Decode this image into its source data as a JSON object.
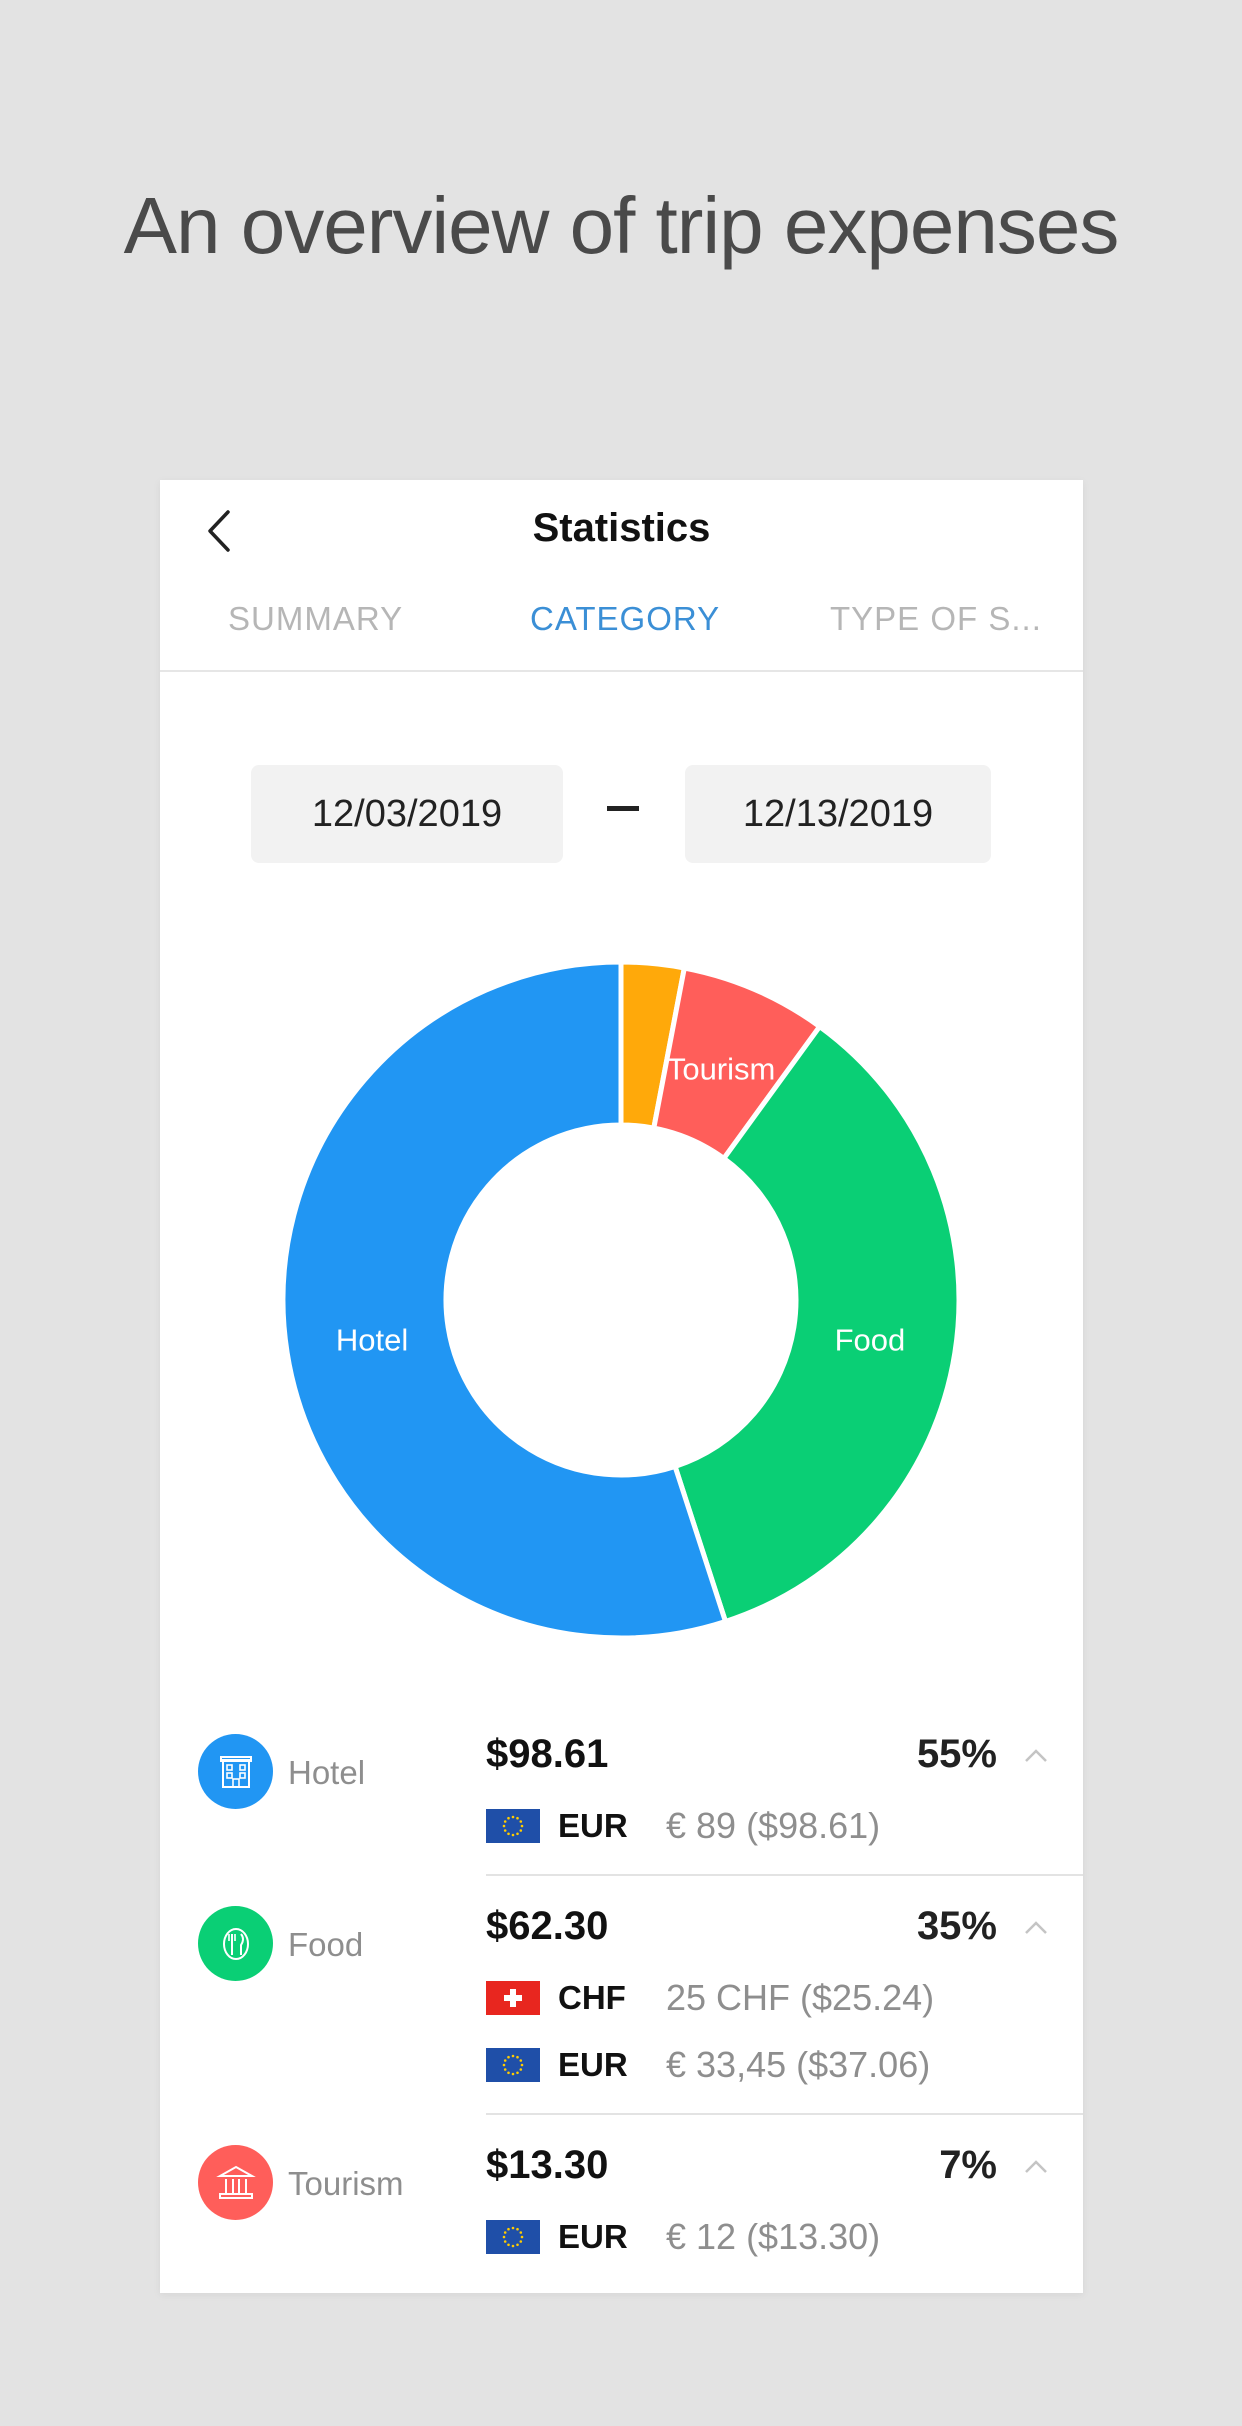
{
  "headline": "An overview of trip expenses",
  "nav": {
    "title": "Statistics",
    "back_icon": "chevron-left-icon"
  },
  "tabs": [
    {
      "label": "SUMMARY",
      "active": false
    },
    {
      "label": "CATEGORY",
      "active": true
    },
    {
      "label": "TYPE OF S...",
      "active": false
    }
  ],
  "dates": {
    "start": "12/03/2019",
    "end": "12/13/2019"
  },
  "chart_data": {
    "type": "pie",
    "donut": true,
    "slices": [
      {
        "label": "",
        "value": 3,
        "color": "#ffa90a"
      },
      {
        "label": "Tourism",
        "value": 7,
        "color": "#ff5e5a"
      },
      {
        "label": "Food",
        "value": 35,
        "color": "#0acf75"
      },
      {
        "label": "Hotel",
        "value": 55,
        "color": "#2196f3"
      }
    ]
  },
  "categories": [
    {
      "name": "Hotel",
      "icon": "hotel-icon",
      "color": "#2196f3",
      "amount": "$98.61",
      "percent": "55%",
      "lines": [
        {
          "flag": "eu-flag-icon",
          "code": "EUR",
          "value": "€ 89 ($98.61)"
        }
      ]
    },
    {
      "name": "Food",
      "icon": "food-icon",
      "color": "#0acf75",
      "amount": "$62.30",
      "percent": "35%",
      "lines": [
        {
          "flag": "swiss-flag-icon",
          "code": "CHF",
          "value": "25 CHF ($25.24)"
        },
        {
          "flag": "eu-flag-icon",
          "code": "EUR",
          "value": "€ 33,45 ($37.06)"
        }
      ]
    },
    {
      "name": "Tourism",
      "icon": "museum-icon",
      "color": "#ff5e5a",
      "amount": "$13.30",
      "percent": "7%",
      "lines": [
        {
          "flag": "eu-flag-icon",
          "code": "EUR",
          "value": "€ 12 ($13.30)"
        }
      ]
    }
  ]
}
